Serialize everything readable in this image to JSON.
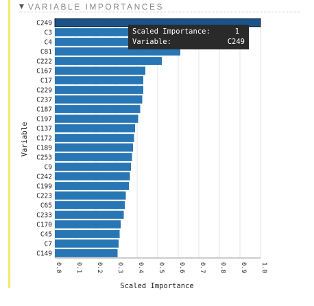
{
  "header": {
    "title": "VARIABLE IMPORTANCES"
  },
  "tooltip": {
    "importance_label": "Scaled Importance:",
    "importance_value": "1",
    "variable_label": "Variable:",
    "variable_value": "C249"
  },
  "colors": {
    "bar": "#2876b4",
    "bar_highlight": "#1a5289",
    "accent_rule": "#f3ea6b",
    "tooltip_bg": "#2a2a2a"
  },
  "chart_data": {
    "type": "bar",
    "orientation": "horizontal",
    "xlabel": "Scaled Importance",
    "ylabel": "Variable",
    "xlim": [
      0,
      1
    ],
    "xticks": [
      "0.0",
      "0.1",
      "0.2",
      "0.3",
      "0.4",
      "0.5",
      "0.6",
      "0.7",
      "0.8",
      "0.9",
      "1.0"
    ],
    "grid": true,
    "categories": [
      "C249",
      "C3",
      "C4",
      "C81",
      "C222",
      "C167",
      "C17",
      "C229",
      "C237",
      "C187",
      "C197",
      "C137",
      "C172",
      "C189",
      "C253",
      "C9",
      "C242",
      "C199",
      "C223",
      "C65",
      "C233",
      "C170",
      "C45",
      "C7",
      "C149"
    ],
    "values": [
      1.0,
      0.38,
      0.37,
      0.61,
      0.52,
      0.44,
      0.43,
      0.43,
      0.425,
      0.415,
      0.405,
      0.39,
      0.385,
      0.38,
      0.375,
      0.37,
      0.365,
      0.36,
      0.345,
      0.34,
      0.335,
      0.32,
      0.315,
      0.31,
      0.305
    ],
    "highlighted": "C249"
  }
}
